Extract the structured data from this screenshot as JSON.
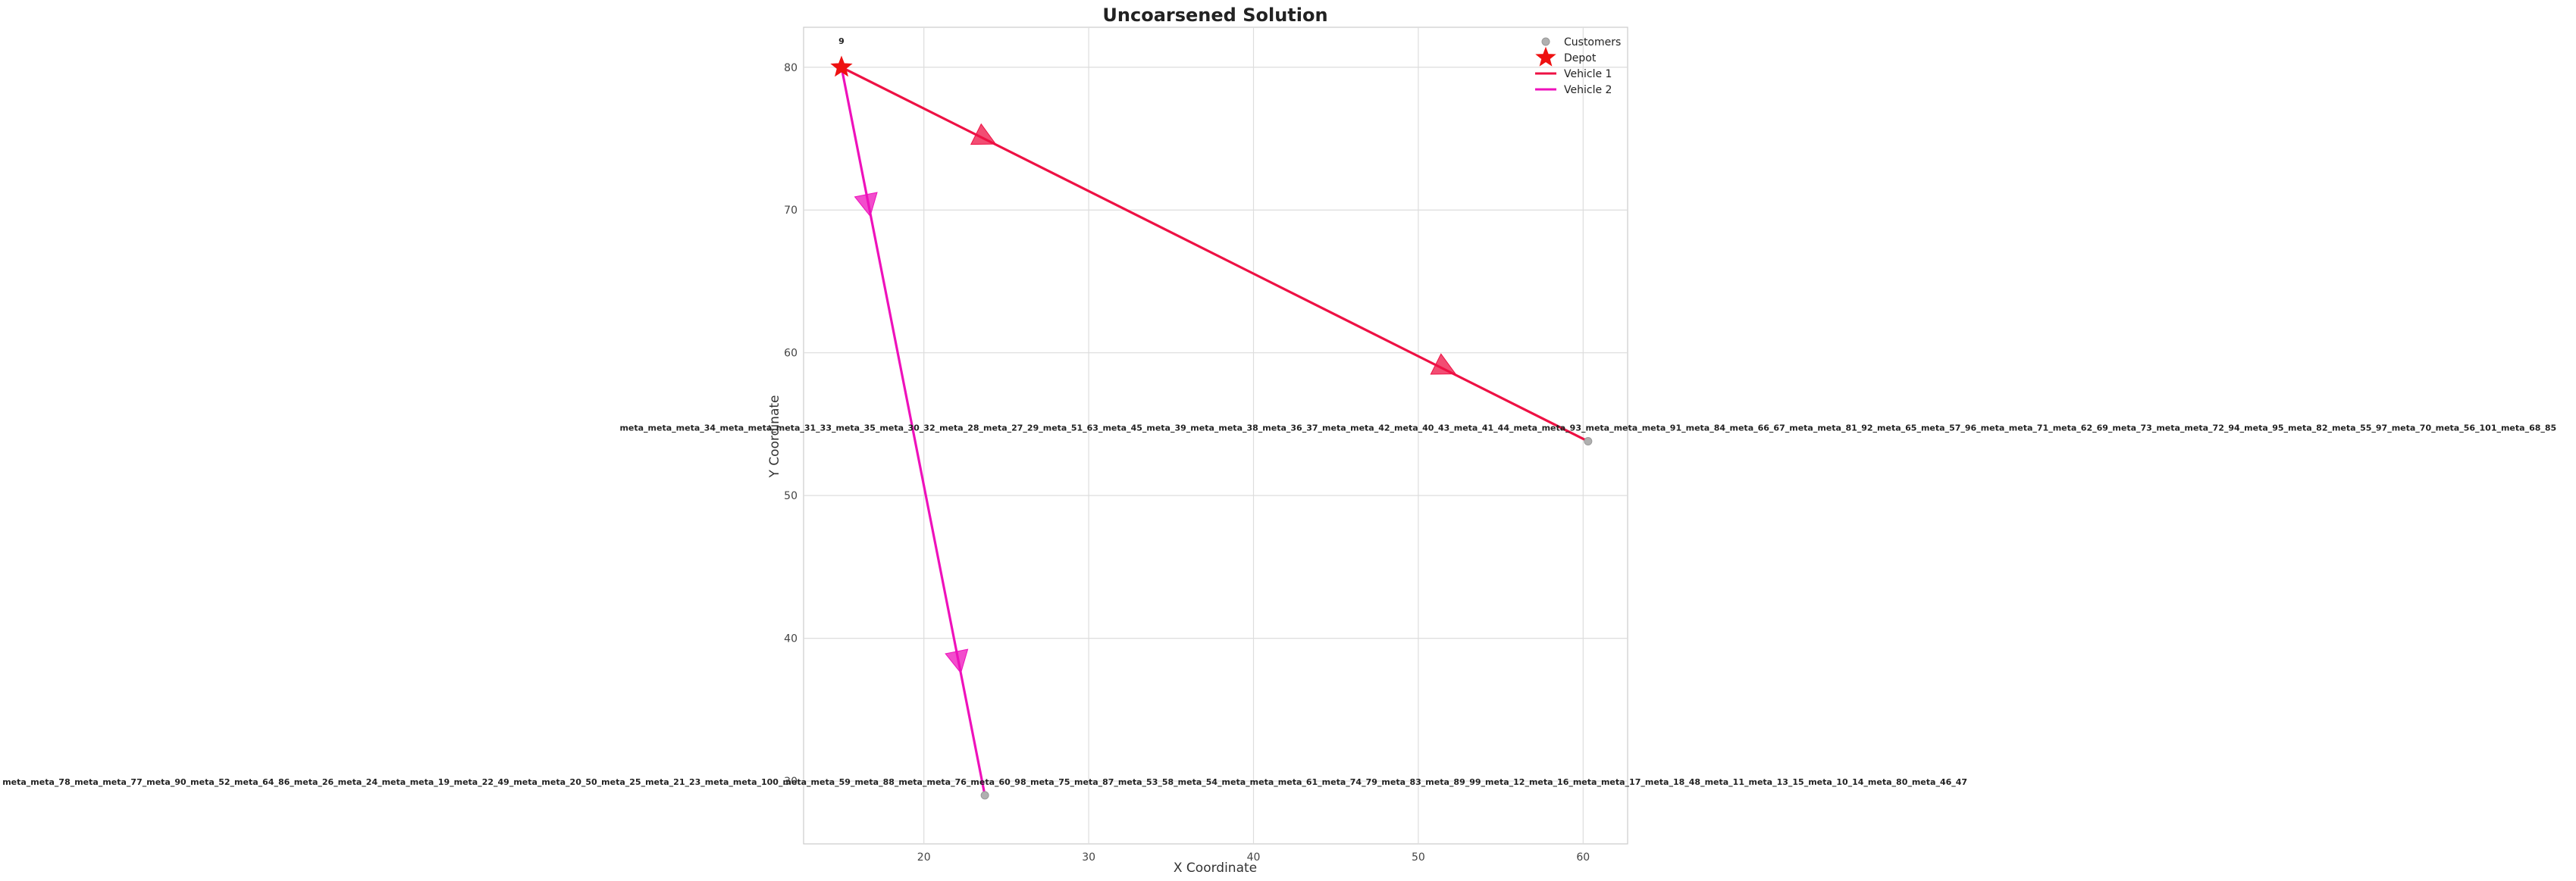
{
  "chart_data": {
    "type": "line",
    "title": "Uncoarsened Solution",
    "xlabel": "X Coordinate",
    "ylabel": "Y Coordinate",
    "xlim": [
      12.7,
      62.7
    ],
    "ylim": [
      25.6,
      82.8
    ],
    "xticks": [
      20,
      30,
      40,
      50,
      60
    ],
    "yticks": [
      30,
      40,
      50,
      60,
      70,
      80
    ],
    "grid": true,
    "legend_position": "top-right",
    "legend": [
      {
        "label": "Customers",
        "marker": "circle"
      },
      {
        "label": "Depot",
        "marker": "star"
      },
      {
        "label": "Vehicle 1",
        "marker": "line"
      },
      {
        "label": "Vehicle 2",
        "marker": "line"
      }
    ],
    "depot": {
      "x": 15.0,
      "y": 80.0,
      "label": "9"
    },
    "customers": [
      {
        "x": 60.3,
        "y": 53.8,
        "label": "meta_meta_meta_34_meta_meta_meta_31_33_meta_35_meta_30_32_meta_28_meta_27_29_meta_51_63_meta_45_meta_39_meta_meta_38_meta_36_37_meta_meta_42_meta_40_43_meta_41_44_meta_meta_93_meta_meta_meta_91_meta_84_meta_66_67_meta_meta_81_92_meta_65_meta_57_96_meta_meta_71_meta_62_69_meta_73_meta_meta_72_94_meta_95_meta_82_meta_55_97_meta_70_meta_56_101_meta_68_85"
      },
      {
        "x": 23.7,
        "y": 29.0,
        "label": "meta_meta_78_meta_meta_77_meta_90_meta_52_meta_64_86_meta_26_meta_24_meta_meta_19_meta_22_49_meta_meta_20_50_meta_25_meta_21_23_meta_meta_100_meta_meta_59_meta_88_meta_meta_76_meta_60_98_meta_75_meta_87_meta_53_58_meta_54_meta_meta_meta_61_meta_74_79_meta_83_meta_89_99_meta_12_meta_16_meta_meta_17_meta_18_48_meta_11_meta_13_15_meta_10_14_meta_80_meta_46_47"
      }
    ],
    "series": [
      {
        "name": "Vehicle 1",
        "color": "#ee1144",
        "points": [
          {
            "x": 15.0,
            "y": 80.0
          },
          {
            "x": 60.3,
            "y": 53.8
          }
        ]
      },
      {
        "name": "Vehicle 2",
        "color": "#ee11bb",
        "points": [
          {
            "x": 15.0,
            "y": 80.0
          },
          {
            "x": 23.7,
            "y": 29.0
          }
        ]
      }
    ],
    "arrows": [
      {
        "series": 0,
        "x": 23.7,
        "y": 75.0
      },
      {
        "series": 0,
        "x": 51.6,
        "y": 58.9
      },
      {
        "series": 1,
        "x": 16.6,
        "y": 70.4
      },
      {
        "series": 1,
        "x": 22.1,
        "y": 38.4
      }
    ],
    "colors": {
      "depot": "#ee1111",
      "customer": "#b0b0b0",
      "grid": "#dddddd",
      "axes": "#cccccc"
    }
  }
}
